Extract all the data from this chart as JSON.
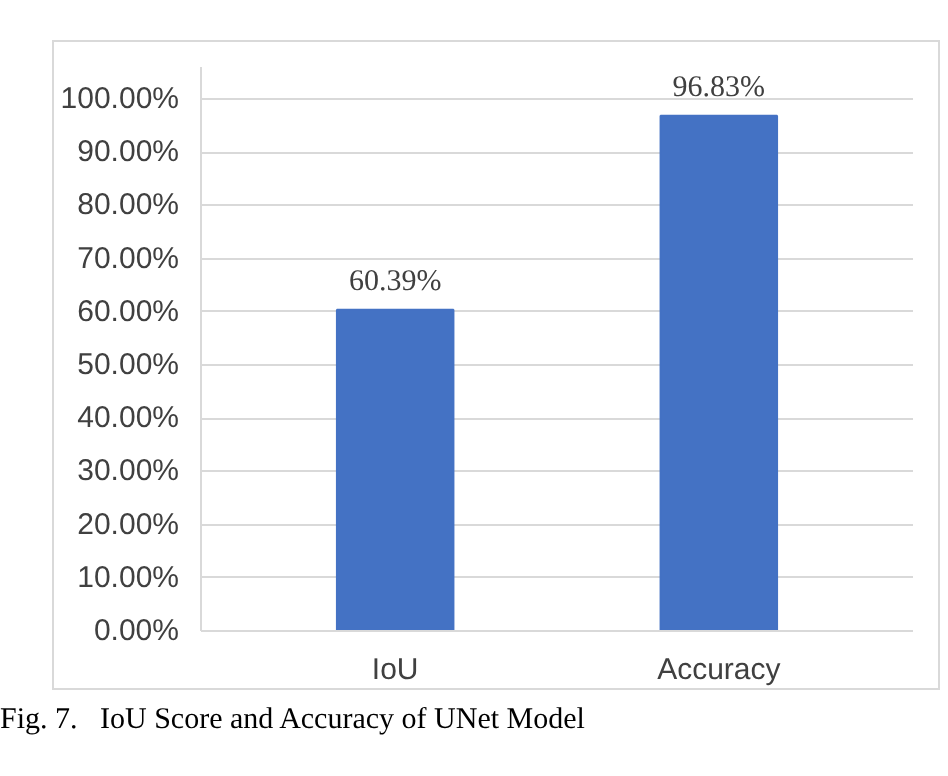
{
  "chart_data": {
    "type": "bar",
    "categories": [
      "IoU",
      "Accuracy"
    ],
    "values": [
      60.39,
      96.83
    ],
    "color": "#4472c4",
    "value_labels": [
      "60.39%",
      "96.83%"
    ],
    "ylim": [
      0,
      106
    ],
    "yticks": [
      {
        "value": 0,
        "label": "0.00%"
      },
      {
        "value": 10,
        "label": "10.00%"
      },
      {
        "value": 20,
        "label": "20.00%"
      },
      {
        "value": 30,
        "label": "30.00%"
      },
      {
        "value": 40,
        "label": "40.00%"
      },
      {
        "value": 50,
        "label": "50.00%"
      },
      {
        "value": 60,
        "label": "60.00%"
      },
      {
        "value": 70,
        "label": "70.00%"
      },
      {
        "value": 80,
        "label": "80.00%"
      },
      {
        "value": 90,
        "label": "90.00%"
      },
      {
        "value": 100,
        "label": "100.00%"
      }
    ],
    "grid": "y",
    "annotations": [
      "Fig. 7.   IoU Score and Accuracy of UNet Model"
    ]
  }
}
